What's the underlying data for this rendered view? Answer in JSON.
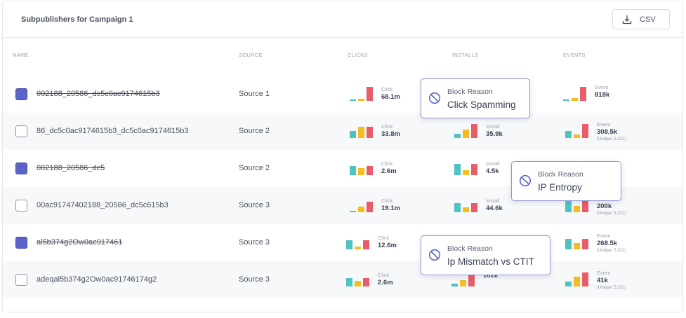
{
  "card": {
    "title": "Subpublishers for Campaign 1",
    "csv_label": "CSV"
  },
  "columns": {
    "name": "NAME",
    "source": "SOURCE",
    "clicks": "CLICKS",
    "installs": "INSTALLS",
    "events": "EVENTS"
  },
  "colors": {
    "teal": "#4ec3c0",
    "yellow": "#f5bd1f",
    "red": "#e85d6a",
    "checkbox_accent": "#5b63c9",
    "tooltip_border": "#8f96d4"
  },
  "rows": [
    {
      "name": "002188_20586_dc5c0ac9174615b3",
      "struck": true,
      "checked": true,
      "source": "Source 1",
      "clicks": {
        "label": "Click",
        "value": "68.1m",
        "bars": [
          0.05,
          0.15,
          1.0
        ]
      },
      "installs": null,
      "events": {
        "label": "Event",
        "value": "818k",
        "unique": "",
        "bars": [
          0.05,
          0.2,
          1.0
        ]
      }
    },
    {
      "name": "86_dc5c0ac9174615b3_dc5c0ac9174615b3",
      "struck": false,
      "checked": false,
      "source": "Source 2",
      "clicks": {
        "label": "Click",
        "value": "33.8m",
        "bars": [
          0.5,
          0.8,
          0.8
        ]
      },
      "installs": {
        "label": "Install",
        "value": "35.9k",
        "bars": [
          0.3,
          0.6,
          1.0
        ]
      },
      "events": {
        "label": "Event",
        "value": "308.5k",
        "unique": "(Unique: 5.221)",
        "bars": [
          0.5,
          0.25,
          1.0
        ]
      }
    },
    {
      "name": "002188_20586_dc5",
      "struck": true,
      "checked": true,
      "source": "Source 2",
      "clicks": {
        "label": "Click",
        "value": "2.6m",
        "bars": [
          0.65,
          0.5,
          0.65
        ]
      },
      "installs": {
        "label": "Install",
        "value": "4.5k",
        "bars": [
          0.8,
          0.35,
          0.8
        ]
      },
      "events": null
    },
    {
      "name": "00ac91747402188_20586_dc5c615b3",
      "struck": false,
      "checked": false,
      "source": "Source 3",
      "clicks": {
        "label": "Click",
        "value": "19.1m",
        "bars": [
          0.1,
          0.4,
          0.75
        ]
      },
      "installs": {
        "label": "Install",
        "value": "44.6k",
        "bars": [
          0.65,
          0.35,
          0.65
        ]
      },
      "events": {
        "label": "Event",
        "value": "200k",
        "unique": "(Unique: 5.221)",
        "bars": [
          0.8,
          0.45,
          0.85
        ]
      }
    },
    {
      "name": "al5b374g2Ow0ac917461",
      "struck": true,
      "checked": true,
      "source": "Source 3",
      "clicks": {
        "label": "Click",
        "value": "12.6m",
        "bars": [
          0.65,
          0.2,
          0.65
        ]
      },
      "installs": null,
      "events": {
        "label": "Event",
        "value": "268.5k",
        "unique": "(Unique: 5.221)",
        "bars": [
          0.75,
          0.45,
          0.75
        ]
      }
    },
    {
      "name": "adeqal5b374g2Ow0ac91746174g2",
      "struck": false,
      "checked": false,
      "source": "Source 3",
      "clicks": {
        "label": "Click",
        "value": "2.6m",
        "bars": [
          0.6,
          0.4,
          0.6
        ]
      },
      "installs": {
        "label": "",
        "value": "102k",
        "bars": [
          0.2,
          0.45,
          0.9
        ]
      },
      "events": {
        "label": "Event",
        "value": "41k",
        "unique": "(Unique: 5.221)",
        "bars": [
          0.35,
          0.7,
          1.0
        ]
      }
    }
  ],
  "tooltips": [
    {
      "title": "Block Reason",
      "reason": "Click Spamming",
      "icon": "ban-icon"
    },
    {
      "title": "Block Reason",
      "reason": "IP Entropy",
      "icon": "ban-icon"
    },
    {
      "title": "Block Reason",
      "reason": "Ip Mismatch vs CTIT",
      "icon": "ban-icon"
    }
  ]
}
